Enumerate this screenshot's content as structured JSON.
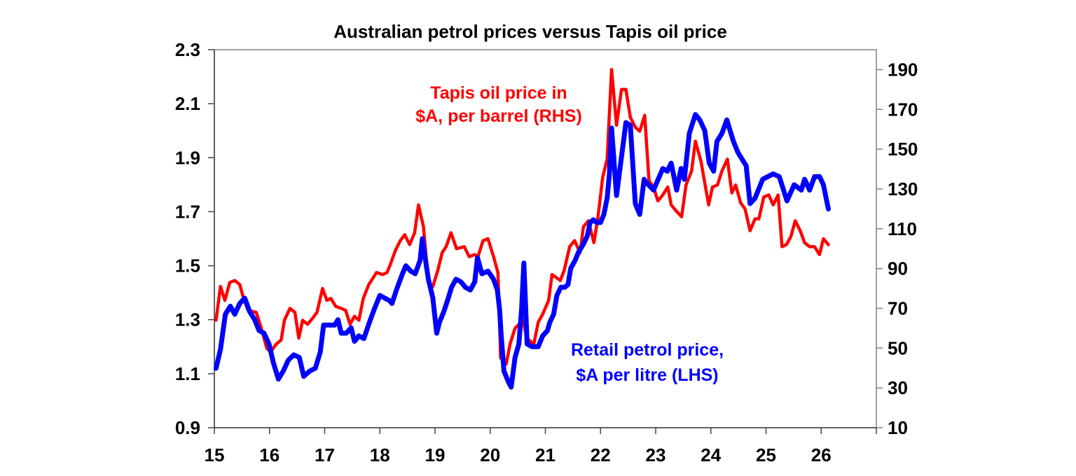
{
  "chart_data": {
    "type": "line",
    "title": "Australian petrol prices versus Tapis oil price",
    "x_ticks": [
      "15",
      "16",
      "17",
      "18",
      "19",
      "20",
      "21",
      "22",
      "23",
      "24",
      "25",
      "26"
    ],
    "xlim": [
      15,
      27
    ],
    "y_left": {
      "ylim": [
        0.9,
        2.3
      ],
      "ticks": [
        "0.9",
        "1.1",
        "1.3",
        "1.5",
        "1.7",
        "1.9",
        "2.1",
        "2.3"
      ]
    },
    "y_right": {
      "ylim": [
        10,
        200
      ],
      "ticks": [
        "10",
        "30",
        "50",
        "70",
        "90",
        "110",
        "130",
        "150",
        "170",
        "190"
      ]
    },
    "grid": false,
    "annotations": {
      "oil": [
        "Tapis oil price in",
        "$A, per barrel (RHS)"
      ],
      "petrol": [
        "Retail petrol price,",
        "$A per litre (LHS)"
      ]
    },
    "series": [
      {
        "name": "Retail petrol price, $A per litre (LHS)",
        "axis": "left",
        "color": "#0000ff",
        "points": [
          [
            15.03,
            1.12
          ],
          [
            15.11,
            1.19
          ],
          [
            15.2,
            1.32
          ],
          [
            15.29,
            1.35
          ],
          [
            15.37,
            1.32
          ],
          [
            15.46,
            1.36
          ],
          [
            15.55,
            1.38
          ],
          [
            15.64,
            1.33
          ],
          [
            15.73,
            1.3
          ],
          [
            15.81,
            1.26
          ],
          [
            15.9,
            1.25
          ],
          [
            15.99,
            1.21
          ],
          [
            16.07,
            1.14
          ],
          [
            16.16,
            1.08
          ],
          [
            16.25,
            1.11
          ],
          [
            16.34,
            1.15
          ],
          [
            16.44,
            1.17
          ],
          [
            16.54,
            1.16
          ],
          [
            16.62,
            1.09
          ],
          [
            16.73,
            1.11
          ],
          [
            16.83,
            1.12
          ],
          [
            16.92,
            1.18
          ],
          [
            16.98,
            1.28
          ],
          [
            17.1,
            1.28
          ],
          [
            17.18,
            1.28
          ],
          [
            17.24,
            1.3
          ],
          [
            17.3,
            1.25
          ],
          [
            17.39,
            1.25
          ],
          [
            17.48,
            1.27
          ],
          [
            17.54,
            1.22
          ],
          [
            17.62,
            1.24
          ],
          [
            17.71,
            1.23
          ],
          [
            17.81,
            1.29
          ],
          [
            17.9,
            1.34
          ],
          [
            18.0,
            1.39
          ],
          [
            18.09,
            1.38
          ],
          [
            18.18,
            1.37
          ],
          [
            18.22,
            1.36
          ],
          [
            18.3,
            1.41
          ],
          [
            18.41,
            1.47
          ],
          [
            18.47,
            1.5
          ],
          [
            18.56,
            1.48
          ],
          [
            18.64,
            1.47
          ],
          [
            18.73,
            1.52
          ],
          [
            18.77,
            1.6
          ],
          [
            18.88,
            1.45
          ],
          [
            18.96,
            1.38
          ],
          [
            19.03,
            1.25
          ],
          [
            19.08,
            1.29
          ],
          [
            19.16,
            1.33
          ],
          [
            19.24,
            1.38
          ],
          [
            19.3,
            1.42
          ],
          [
            19.38,
            1.45
          ],
          [
            19.47,
            1.44
          ],
          [
            19.55,
            1.42
          ],
          [
            19.64,
            1.41
          ],
          [
            19.72,
            1.44
          ],
          [
            19.77,
            1.53
          ],
          [
            19.85,
            1.47
          ],
          [
            19.96,
            1.48
          ],
          [
            20.06,
            1.45
          ],
          [
            20.13,
            1.41
          ],
          [
            20.17,
            1.34
          ],
          [
            20.2,
            1.24
          ],
          [
            20.25,
            1.11
          ],
          [
            20.33,
            1.07
          ],
          [
            20.38,
            1.05
          ],
          [
            20.45,
            1.16
          ],
          [
            20.52,
            1.21
          ],
          [
            20.57,
            1.34
          ],
          [
            20.61,
            1.51
          ],
          [
            20.67,
            1.21
          ],
          [
            20.76,
            1.2
          ],
          [
            20.87,
            1.2
          ],
          [
            20.95,
            1.24
          ],
          [
            21.04,
            1.26
          ],
          [
            21.08,
            1.29
          ],
          [
            21.15,
            1.32
          ],
          [
            21.21,
            1.39
          ],
          [
            21.28,
            1.42
          ],
          [
            21.35,
            1.42
          ],
          [
            21.41,
            1.43
          ],
          [
            21.46,
            1.49
          ],
          [
            21.54,
            1.52
          ],
          [
            21.6,
            1.55
          ],
          [
            21.69,
            1.58
          ],
          [
            21.76,
            1.61
          ],
          [
            21.81,
            1.66
          ],
          [
            21.87,
            1.67
          ],
          [
            21.93,
            1.66
          ],
          [
            22.0,
            1.66
          ],
          [
            22.06,
            1.69
          ],
          [
            22.12,
            1.75
          ],
          [
            22.16,
            1.84
          ],
          [
            22.2,
            2.01
          ],
          [
            22.29,
            1.76
          ],
          [
            22.46,
            2.03
          ],
          [
            22.54,
            2.02
          ],
          [
            22.63,
            1.73
          ],
          [
            22.71,
            1.69
          ],
          [
            22.79,
            1.82
          ],
          [
            22.82,
            1.81
          ],
          [
            22.96,
            1.78
          ],
          [
            23.13,
            1.86
          ],
          [
            23.21,
            1.85
          ],
          [
            23.28,
            1.88
          ],
          [
            23.38,
            1.78
          ],
          [
            23.46,
            1.86
          ],
          [
            23.52,
            1.82
          ],
          [
            23.61,
            1.99
          ],
          [
            23.72,
            2.06
          ],
          [
            23.8,
            2.04
          ],
          [
            23.89,
            2.0
          ],
          [
            23.97,
            1.88
          ],
          [
            24.05,
            1.85
          ],
          [
            24.11,
            1.96
          ],
          [
            24.2,
            1.99
          ],
          [
            24.29,
            2.04
          ],
          [
            24.41,
            1.96
          ],
          [
            24.49,
            1.92
          ],
          [
            24.64,
            1.87
          ],
          [
            24.71,
            1.73
          ],
          [
            24.8,
            1.75
          ],
          [
            24.94,
            1.82
          ],
          [
            25.13,
            1.84
          ],
          [
            25.24,
            1.83
          ],
          [
            25.38,
            1.74
          ],
          [
            25.51,
            1.8
          ],
          [
            25.64,
            1.78
          ],
          [
            25.7,
            1.82
          ],
          [
            25.79,
            1.78
          ],
          [
            25.88,
            1.83
          ],
          [
            25.97,
            1.83
          ],
          [
            26.04,
            1.8
          ],
          [
            26.13,
            1.71
          ]
        ]
      },
      {
        "name": "Tapis oil price in $A, per barrel (RHS)",
        "axis": "right",
        "color": "#ff0000",
        "points": [
          [
            15.03,
            64
          ],
          [
            15.11,
            81
          ],
          [
            15.19,
            74
          ],
          [
            15.28,
            83
          ],
          [
            15.37,
            84
          ],
          [
            15.46,
            82
          ],
          [
            15.52,
            76
          ],
          [
            15.61,
            69
          ],
          [
            15.76,
            68
          ],
          [
            15.84,
            61
          ],
          [
            15.95,
            50
          ],
          [
            16.02,
            48
          ],
          [
            16.12,
            52
          ],
          [
            16.21,
            54
          ],
          [
            16.27,
            64
          ],
          [
            16.37,
            70
          ],
          [
            16.46,
            68
          ],
          [
            16.53,
            55
          ],
          [
            16.6,
            64
          ],
          [
            16.69,
            62
          ],
          [
            16.78,
            65
          ],
          [
            16.86,
            68
          ],
          [
            16.96,
            80
          ],
          [
            17.04,
            74
          ],
          [
            17.11,
            75
          ],
          [
            17.2,
            71
          ],
          [
            17.3,
            70
          ],
          [
            17.38,
            69
          ],
          [
            17.46,
            62
          ],
          [
            17.54,
            66
          ],
          [
            17.62,
            64
          ],
          [
            17.7,
            75
          ],
          [
            17.8,
            82
          ],
          [
            17.94,
            88
          ],
          [
            18.05,
            87
          ],
          [
            18.13,
            88
          ],
          [
            18.19,
            92
          ],
          [
            18.28,
            99
          ],
          [
            18.37,
            104
          ],
          [
            18.45,
            107
          ],
          [
            18.54,
            102
          ],
          [
            18.63,
            108
          ],
          [
            18.7,
            122
          ],
          [
            18.79,
            111
          ],
          [
            18.88,
            83
          ],
          [
            18.96,
            81
          ],
          [
            19.05,
            89
          ],
          [
            19.13,
            98
          ],
          [
            19.2,
            101
          ],
          [
            19.29,
            108
          ],
          [
            19.39,
            100
          ],
          [
            19.53,
            101
          ],
          [
            19.62,
            96
          ],
          [
            19.72,
            97
          ],
          [
            19.78,
            96
          ],
          [
            19.87,
            104
          ],
          [
            19.96,
            105
          ],
          [
            20.06,
            96
          ],
          [
            20.14,
            88
          ],
          [
            20.19,
            45
          ],
          [
            20.29,
            42
          ],
          [
            20.36,
            52
          ],
          [
            20.45,
            60
          ],
          [
            20.6,
            64
          ],
          [
            20.66,
            55
          ],
          [
            20.79,
            52
          ],
          [
            20.87,
            63
          ],
          [
            20.95,
            67
          ],
          [
            21.06,
            74
          ],
          [
            21.12,
            87
          ],
          [
            21.27,
            84
          ],
          [
            21.34,
            89
          ],
          [
            21.44,
            101
          ],
          [
            21.53,
            104
          ],
          [
            21.63,
            98
          ],
          [
            21.69,
            111
          ],
          [
            21.78,
            114
          ],
          [
            21.88,
            103
          ],
          [
            21.95,
            115
          ],
          [
            22.04,
            136
          ],
          [
            22.12,
            145
          ],
          [
            22.2,
            190
          ],
          [
            22.29,
            162
          ],
          [
            22.38,
            180
          ],
          [
            22.46,
            180
          ],
          [
            22.54,
            166
          ],
          [
            22.63,
            161
          ],
          [
            22.71,
            159
          ],
          [
            22.8,
            167
          ],
          [
            22.88,
            134
          ],
          [
            22.96,
            131
          ],
          [
            23.04,
            124
          ],
          [
            23.13,
            127
          ],
          [
            23.22,
            131
          ],
          [
            23.28,
            122
          ],
          [
            23.37,
            119
          ],
          [
            23.47,
            116
          ],
          [
            23.55,
            132
          ],
          [
            23.65,
            139
          ],
          [
            23.72,
            154
          ],
          [
            23.82,
            144
          ],
          [
            23.96,
            122
          ],
          [
            24.03,
            131
          ],
          [
            24.12,
            132
          ],
          [
            24.2,
            139
          ],
          [
            24.3,
            145
          ],
          [
            24.38,
            128
          ],
          [
            24.45,
            132
          ],
          [
            24.54,
            123
          ],
          [
            24.62,
            120
          ],
          [
            24.71,
            109
          ],
          [
            24.8,
            115
          ],
          [
            24.87,
            115
          ],
          [
            24.96,
            126
          ],
          [
            25.05,
            127
          ],
          [
            25.13,
            122
          ],
          [
            25.22,
            127
          ],
          [
            25.29,
            101
          ],
          [
            25.37,
            102
          ],
          [
            25.45,
            106
          ],
          [
            25.53,
            114
          ],
          [
            25.62,
            109
          ],
          [
            25.7,
            103
          ],
          [
            25.79,
            101
          ],
          [
            25.88,
            101
          ],
          [
            25.97,
            97
          ],
          [
            26.04,
            105
          ],
          [
            26.13,
            102
          ]
        ]
      }
    ]
  }
}
